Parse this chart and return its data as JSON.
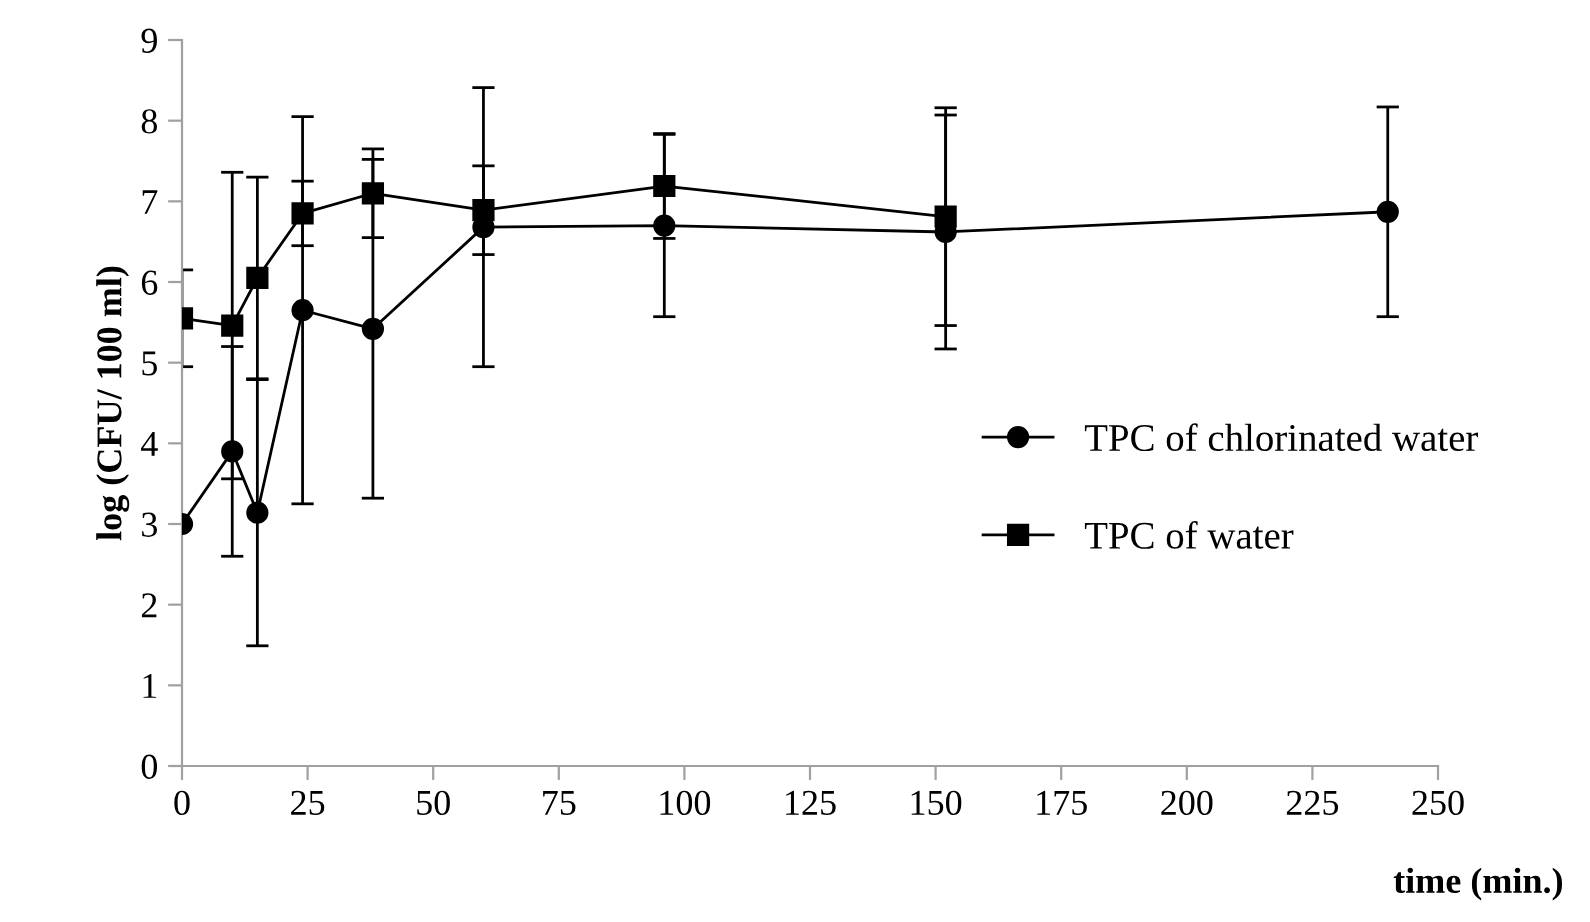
{
  "chart_data": {
    "type": "line",
    "xlabel": "time (min.)",
    "ylabel": "log (CFU/ 100 ml)",
    "xlim": [
      0,
      250
    ],
    "ylim": [
      0,
      9
    ],
    "xticks": [
      0,
      25,
      50,
      75,
      100,
      125,
      150,
      175,
      200,
      225,
      250
    ],
    "yticks": [
      0,
      1,
      2,
      3,
      4,
      5,
      6,
      7,
      8,
      9
    ],
    "grid": false,
    "legend": "right",
    "line_style": "solid",
    "x": [
      0,
      10,
      15,
      24,
      38,
      60,
      96,
      152,
      240
    ],
    "series": [
      {
        "name": "TPC of chlorinated water",
        "color": "#000000",
        "marker": "circle",
        "values": [
          3.0,
          3.9,
          3.14,
          5.65,
          5.42,
          6.68,
          6.7,
          6.62,
          6.87
        ],
        "errors": [
          null,
          1.3,
          1.65,
          2.4,
          2.1,
          1.73,
          1.13,
          1.45,
          1.3
        ]
      },
      {
        "name": "TPC of water",
        "color": "#000000",
        "marker": "square",
        "x": [
          0,
          10,
          15,
          24,
          38,
          60,
          96,
          152
        ],
        "values": [
          5.55,
          5.46,
          6.05,
          6.85,
          7.1,
          6.89,
          7.19,
          6.81
        ],
        "errors": [
          0.6,
          1.9,
          1.25,
          0.4,
          0.55,
          0.55,
          0.65,
          1.35
        ]
      }
    ]
  }
}
